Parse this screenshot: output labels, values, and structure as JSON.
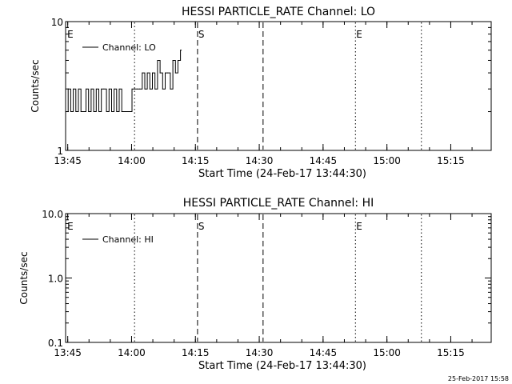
{
  "footer_timestamp": "25-Feb-2017 15:58",
  "chart_data": [
    {
      "type": "line",
      "title": "HESSI PARTICLE_RATE Channel: LO",
      "xlabel": "Start Time (24-Feb-17 13:44:30)",
      "ylabel": "Counts/sec",
      "x_unit": "minutes after 13:44:30",
      "xlim": [
        0,
        100
      ],
      "ylim": [
        1,
        10
      ],
      "y_scale": "log",
      "x_ticks": [
        {
          "value": 0.5,
          "label": "13:45"
        },
        {
          "value": 15.5,
          "label": "14:00"
        },
        {
          "value": 30.5,
          "label": "14:15"
        },
        {
          "value": 45.5,
          "label": "14:30"
        },
        {
          "value": 60.5,
          "label": "14:45"
        },
        {
          "value": 75.5,
          "label": "15:00"
        },
        {
          "value": 90.5,
          "label": "15:15"
        }
      ],
      "y_ticks": [
        {
          "value": 1,
          "label": "1"
        },
        {
          "value": 10,
          "label": "10"
        }
      ],
      "legend": {
        "label": "Channel: LO",
        "position": "top-left"
      },
      "markers": [
        {
          "x": 16.2,
          "style": "dotted",
          "label": ""
        },
        {
          "x": 31.0,
          "style": "dashed",
          "label": "S"
        },
        {
          "x": 46.4,
          "style": "dashed",
          "label": ""
        },
        {
          "x": 68.1,
          "style": "dotted",
          "label": "E"
        },
        {
          "x": 83.6,
          "style": "dotted",
          "label": ""
        }
      ],
      "edge_labels": [
        {
          "x": 0.4,
          "label": "E"
        }
      ],
      "series": [
        {
          "name": "Channel: LO",
          "x": [
            0.0,
            0.6,
            1.2,
            1.8,
            2.4,
            3.0,
            3.6,
            4.2,
            4.8,
            5.4,
            6.0,
            6.6,
            7.2,
            7.8,
            8.4,
            9.0,
            9.6,
            10.2,
            10.8,
            11.4,
            12.0,
            12.6,
            13.2,
            13.8,
            14.4,
            15.0,
            15.6,
            16.2,
            16.8,
            17.4,
            18.0,
            18.6,
            19.2,
            19.8,
            20.4,
            21.0,
            21.6,
            22.2,
            22.8,
            23.4,
            24.0,
            24.6,
            25.2,
            25.8,
            26.4,
            27.0
          ],
          "y": [
            2.0,
            3.0,
            2.0,
            3.0,
            2.0,
            3.0,
            2.0,
            2.0,
            3.0,
            2.0,
            3.0,
            2.0,
            3.0,
            2.0,
            3.0,
            3.0,
            2.0,
            3.0,
            2.0,
            3.0,
            2.0,
            3.0,
            2.0,
            2.0,
            2.0,
            2.0,
            3.0,
            3.0,
            3.0,
            3.0,
            4.0,
            3.0,
            4.0,
            3.0,
            4.0,
            3.0,
            5.0,
            4.0,
            3.0,
            4.0,
            4.0,
            3.0,
            5.0,
            4.0,
            5.0,
            6.0
          ]
        }
      ]
    },
    {
      "type": "line",
      "title": "HESSI PARTICLE_RATE Channel: HI",
      "xlabel": "Start Time (24-Feb-17 13:44:30)",
      "ylabel": "Counts/sec",
      "x_unit": "minutes after 13:44:30",
      "xlim": [
        0,
        100
      ],
      "ylim": [
        0.1,
        10
      ],
      "y_scale": "log",
      "x_ticks": [
        {
          "value": 0.5,
          "label": "13:45"
        },
        {
          "value": 15.5,
          "label": "14:00"
        },
        {
          "value": 30.5,
          "label": "14:15"
        },
        {
          "value": 45.5,
          "label": "14:30"
        },
        {
          "value": 60.5,
          "label": "14:45"
        },
        {
          "value": 75.5,
          "label": "15:00"
        },
        {
          "value": 90.5,
          "label": "15:15"
        }
      ],
      "y_ticks": [
        {
          "value": 0.1,
          "label": "0.1"
        },
        {
          "value": 1,
          "label": "1.0"
        },
        {
          "value": 10,
          "label": "10.0"
        }
      ],
      "legend": {
        "label": "Channel: HI",
        "position": "top-left"
      },
      "markers": [
        {
          "x": 16.2,
          "style": "dotted",
          "label": ""
        },
        {
          "x": 31.0,
          "style": "dashed",
          "label": "S"
        },
        {
          "x": 46.4,
          "style": "dashed",
          "label": ""
        },
        {
          "x": 68.1,
          "style": "dotted",
          "label": "E"
        },
        {
          "x": 83.6,
          "style": "dotted",
          "label": ""
        }
      ],
      "edge_labels": [
        {
          "x": 0.4,
          "label": "E"
        }
      ],
      "series": [
        {
          "name": "Channel: HI",
          "x": [],
          "y": []
        }
      ]
    }
  ]
}
